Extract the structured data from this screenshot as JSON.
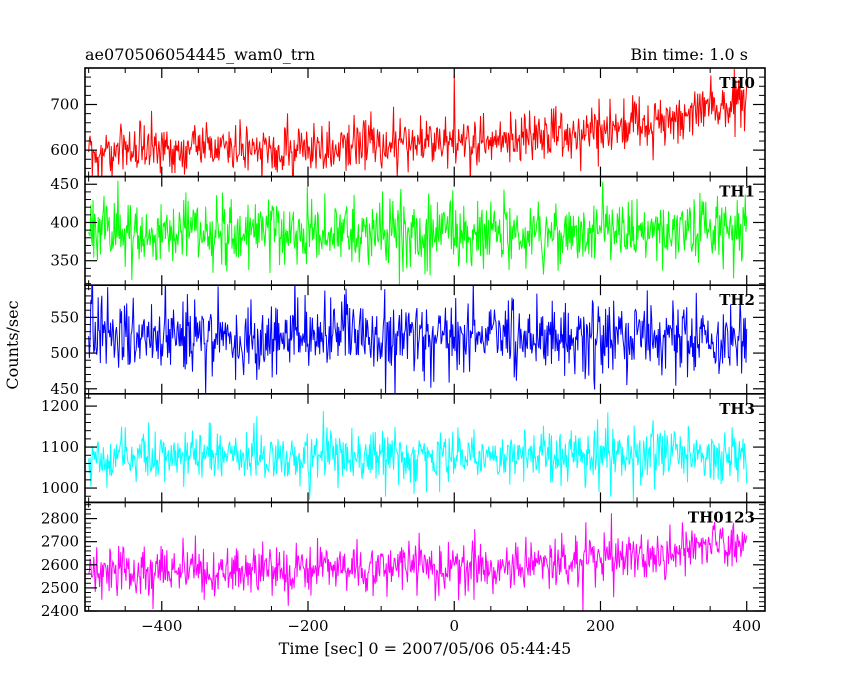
{
  "header": {
    "left_title": "ae070506054445_wam0_trn",
    "right_title": "Bin time: 1.0 s"
  },
  "chart_data": {
    "type": "line",
    "title": "ae070506054445_wam0_trn",
    "bin_time_label": "Bin time: 1.0 s",
    "xlabel": "Time [sec] 0 = 2007/05/06 05:44:45",
    "ylabel": "Counts/sec",
    "xlim": [
      -505,
      425
    ],
    "x_ticks": [
      -400,
      -200,
      0,
      200,
      400
    ],
    "x_tick_labels": [
      "−400",
      "−200",
      "0",
      "200",
      "400"
    ],
    "x_sample_range": [
      -500,
      400
    ],
    "x_step": 1,
    "grid": false,
    "panels": [
      {
        "name": "TH0",
        "color": "#ff0000",
        "ylim": [
          542,
          780
        ],
        "y_ticks": [
          600,
          700
        ],
        "y_tick_labels": [
          "600",
          "700"
        ],
        "trend": [
          [
            -500,
            597
          ],
          [
            -400,
            600
          ],
          [
            -300,
            602
          ],
          [
            -200,
            606
          ],
          [
            -100,
            611
          ],
          [
            0,
            616
          ],
          [
            100,
            627
          ],
          [
            200,
            647
          ],
          [
            300,
            672
          ],
          [
            350,
            690
          ],
          [
            400,
            713
          ]
        ],
        "noise_sd": 28,
        "spikes": [
          [
            0,
            765
          ]
        ]
      },
      {
        "name": "TH1",
        "color": "#00ff00",
        "ylim": [
          318,
          460
        ],
        "y_ticks": [
          350,
          400,
          450
        ],
        "y_tick_labels": [
          "350",
          "400",
          "450"
        ],
        "trend": [
          [
            -500,
            385
          ],
          [
            0,
            387
          ],
          [
            400,
            391
          ]
        ],
        "noise_sd": 22,
        "spikes": []
      },
      {
        "name": "TH2",
        "color": "#0000ff",
        "ylim": [
          443,
          595
        ],
        "y_ticks": [
          450,
          500,
          550
        ],
        "y_tick_labels": [
          "450",
          "500",
          "550"
        ],
        "trend": [
          [
            -500,
            522
          ],
          [
            400,
            522
          ]
        ],
        "noise_sd": 26,
        "spikes": []
      },
      {
        "name": "TH3",
        "color": "#00ffff",
        "ylim": [
          965,
          1230
        ],
        "y_ticks": [
          1000,
          1100,
          1200
        ],
        "y_tick_labels": [
          "1000",
          "1100",
          "1200"
        ],
        "trend": [
          [
            -500,
            1075
          ],
          [
            0,
            1077
          ],
          [
            400,
            1082
          ]
        ],
        "noise_sd": 33,
        "spikes": []
      },
      {
        "name": "TH0123",
        "color": "#ff00ff",
        "ylim": [
          2400,
          2870
        ],
        "y_ticks": [
          2400,
          2500,
          2600,
          2700,
          2800
        ],
        "y_tick_labels": [
          "2400",
          "2500",
          "2600",
          "2700",
          "2800"
        ],
        "trend": [
          [
            -500,
            2570
          ],
          [
            -200,
            2578
          ],
          [
            0,
            2588
          ],
          [
            200,
            2622
          ],
          [
            300,
            2660
          ],
          [
            400,
            2712
          ]
        ],
        "noise_sd": 55,
        "spikes": []
      }
    ]
  }
}
